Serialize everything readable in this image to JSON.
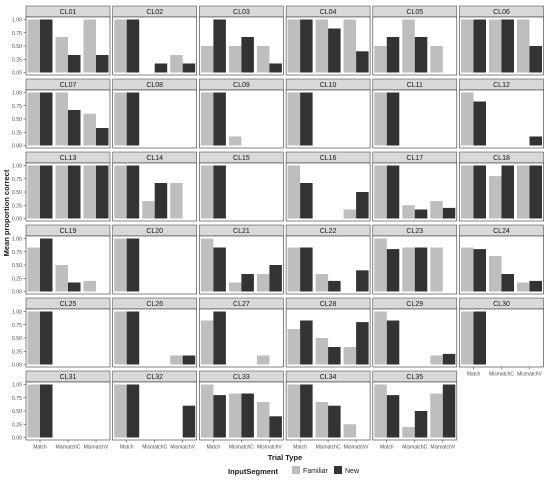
{
  "chart_data": {
    "type": "bar",
    "xlabel": "Trial Type",
    "ylabel": "Mean proportion correct",
    "categories": [
      "Match",
      "MismatchC",
      "MismatchV"
    ],
    "y_ticks": [
      "0.00",
      "0.25",
      "0.50",
      "0.75",
      "1.00"
    ],
    "ylim": [
      0,
      1
    ],
    "grid": false,
    "legend": {
      "title": "InputSegment",
      "placement": "bottom",
      "entries": [
        "Familiar",
        "New"
      ]
    },
    "colors": {
      "Familiar": "#bebebe",
      "New": "#333333",
      "strip": "#d9d9d9"
    },
    "panels": [
      {
        "label": "CL01",
        "familiar": [
          1.0,
          0.67,
          1.0
        ],
        "new": [
          1.0,
          0.33,
          0.33
        ]
      },
      {
        "label": "CL02",
        "familiar": [
          1.0,
          0.0,
          0.33
        ],
        "new": [
          1.0,
          0.17,
          0.17
        ]
      },
      {
        "label": "CL03",
        "familiar": [
          0.5,
          0.5,
          0.5
        ],
        "new": [
          1.0,
          0.67,
          0.17
        ]
      },
      {
        "label": "CL04",
        "familiar": [
          1.0,
          1.0,
          1.0
        ],
        "new": [
          1.0,
          0.83,
          0.4
        ]
      },
      {
        "label": "CL05",
        "familiar": [
          0.5,
          1.0,
          0.5
        ],
        "new": [
          0.67,
          0.67,
          0.0
        ]
      },
      {
        "label": "CL06",
        "familiar": [
          1.0,
          1.0,
          1.0
        ],
        "new": [
          1.0,
          1.0,
          0.5
        ]
      },
      {
        "label": "CL07",
        "familiar": [
          1.0,
          1.0,
          0.6
        ],
        "new": [
          1.0,
          0.67,
          0.33
        ]
      },
      {
        "label": "CL08",
        "familiar": [
          1.0,
          0.0,
          0.0
        ],
        "new": [
          1.0,
          0.0,
          0.0
        ]
      },
      {
        "label": "CL09",
        "familiar": [
          1.0,
          0.17,
          0.0
        ],
        "new": [
          1.0,
          0.0,
          0.0
        ]
      },
      {
        "label": "CL10",
        "familiar": [
          1.0,
          0.0,
          0.0
        ],
        "new": [
          1.0,
          0.0,
          0.0
        ]
      },
      {
        "label": "CL11",
        "familiar": [
          1.0,
          0.0,
          0.0
        ],
        "new": [
          1.0,
          0.0,
          0.0
        ]
      },
      {
        "label": "CL12",
        "familiar": [
          1.0,
          0.0,
          0.0
        ],
        "new": [
          0.83,
          0.0,
          0.17
        ]
      },
      {
        "label": "CL13",
        "familiar": [
          1.0,
          1.0,
          1.0
        ],
        "new": [
          1.0,
          1.0,
          1.0
        ]
      },
      {
        "label": "CL14",
        "familiar": [
          1.0,
          0.33,
          0.67
        ],
        "new": [
          1.0,
          0.67,
          0.0
        ]
      },
      {
        "label": "CL15",
        "familiar": [
          1.0,
          0.0,
          0.0
        ],
        "new": [
          1.0,
          0.0,
          0.0
        ]
      },
      {
        "label": "CL16",
        "familiar": [
          1.0,
          0.0,
          0.17
        ],
        "new": [
          0.67,
          0.0,
          0.5
        ]
      },
      {
        "label": "CL17",
        "familiar": [
          1.0,
          0.25,
          0.33
        ],
        "new": [
          1.0,
          0.17,
          0.2
        ]
      },
      {
        "label": "CL18",
        "familiar": [
          1.0,
          0.8,
          1.0
        ],
        "new": [
          1.0,
          1.0,
          1.0
        ]
      },
      {
        "label": "CL19",
        "familiar": [
          0.83,
          0.5,
          0.2
        ],
        "new": [
          1.0,
          0.17,
          0.0
        ]
      },
      {
        "label": "CL20",
        "familiar": [
          1.0,
          0.0,
          0.0
        ],
        "new": [
          1.0,
          0.0,
          0.0
        ]
      },
      {
        "label": "CL21",
        "familiar": [
          1.0,
          0.17,
          0.33
        ],
        "new": [
          0.83,
          0.33,
          0.5
        ]
      },
      {
        "label": "CL22",
        "familiar": [
          0.83,
          0.33,
          0.0
        ],
        "new": [
          0.83,
          0.2,
          0.4
        ]
      },
      {
        "label": "CL23",
        "familiar": [
          1.0,
          0.83,
          0.83
        ],
        "new": [
          0.8,
          0.83,
          0.0
        ]
      },
      {
        "label": "CL24",
        "familiar": [
          0.83,
          0.67,
          0.17
        ],
        "new": [
          0.8,
          0.33,
          0.2
        ]
      },
      {
        "label": "CL25",
        "familiar": [
          1.0,
          0.0,
          0.0
        ],
        "new": [
          1.0,
          0.0,
          0.0
        ]
      },
      {
        "label": "CL26",
        "familiar": [
          1.0,
          0.0,
          0.17
        ],
        "new": [
          1.0,
          0.0,
          0.17
        ]
      },
      {
        "label": "CL27",
        "familiar": [
          0.83,
          0.0,
          0.17
        ],
        "new": [
          1.0,
          0.0,
          0.0
        ]
      },
      {
        "label": "CL28",
        "familiar": [
          0.67,
          0.5,
          0.33
        ],
        "new": [
          0.83,
          0.33,
          0.8
        ]
      },
      {
        "label": "CL29",
        "familiar": [
          1.0,
          0.0,
          0.17
        ],
        "new": [
          0.83,
          0.0,
          0.2
        ]
      },
      {
        "label": "CL30",
        "familiar": [
          1.0,
          0.0,
          0.0
        ],
        "new": [
          1.0,
          0.0,
          0.0
        ]
      },
      {
        "label": "CL31",
        "familiar": [
          1.0,
          0.0,
          0.0
        ],
        "new": [
          1.0,
          0.0,
          0.0
        ]
      },
      {
        "label": "CL32",
        "familiar": [
          1.0,
          0.0,
          0.0
        ],
        "new": [
          1.0,
          0.0,
          0.6
        ]
      },
      {
        "label": "CL33",
        "familiar": [
          1.0,
          0.83,
          0.67
        ],
        "new": [
          0.8,
          0.83,
          0.4
        ]
      },
      {
        "label": "CL34",
        "familiar": [
          1.0,
          0.67,
          0.25
        ],
        "new": [
          1.0,
          0.6,
          0.0
        ]
      },
      {
        "label": "CL35",
        "familiar": [
          1.0,
          0.2,
          0.83
        ],
        "new": [
          0.8,
          0.5,
          1.0
        ]
      }
    ]
  }
}
